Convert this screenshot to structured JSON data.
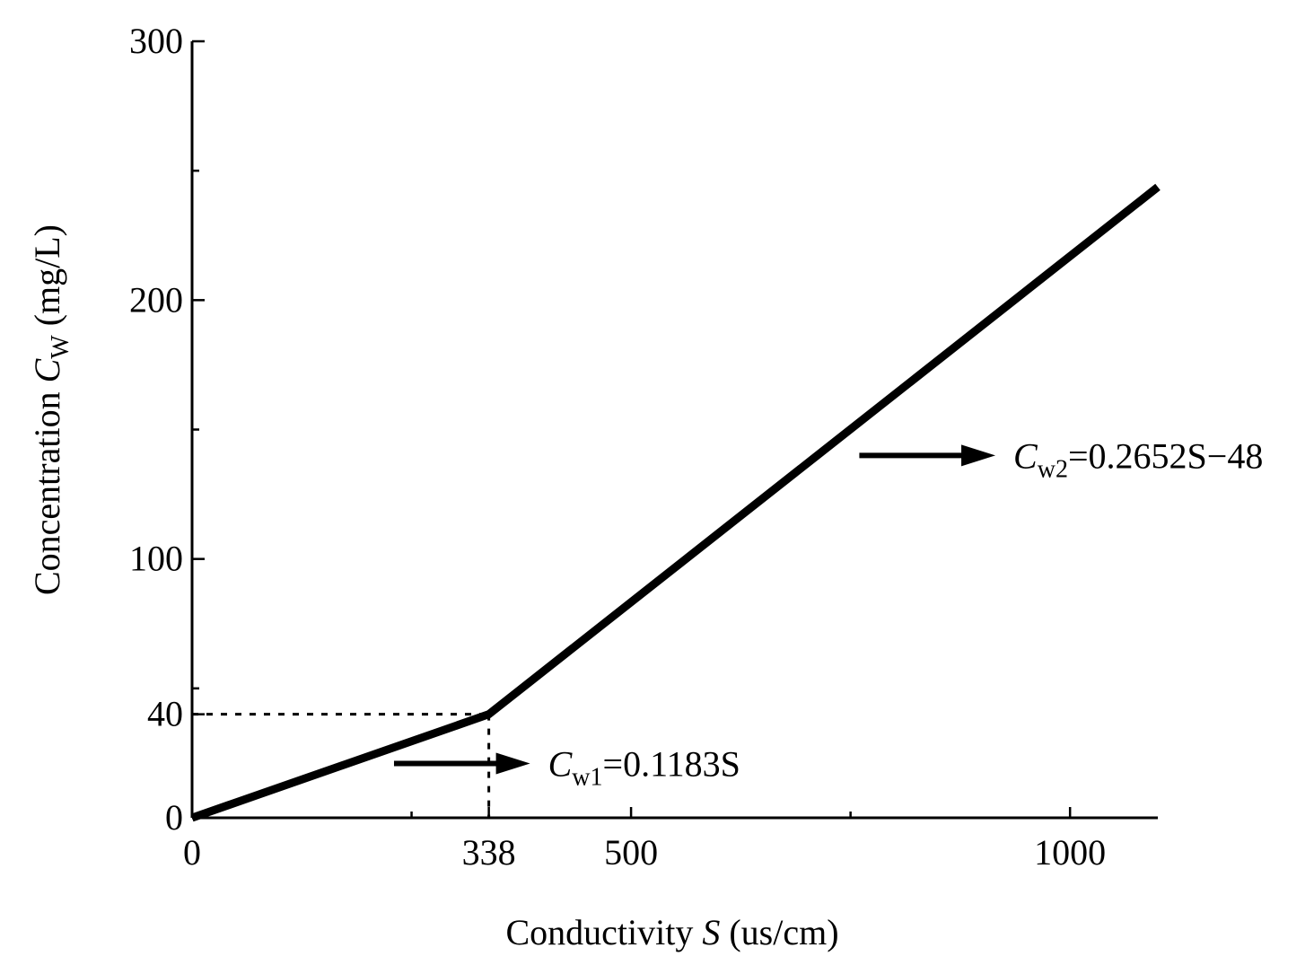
{
  "chart_data": {
    "type": "line",
    "xlabel": {
      "prefix": "Conductivity  ",
      "var": "S",
      "unit": " (us/cm)"
    },
    "ylabel": {
      "prefix": "Concentration ",
      "var": "C",
      "sub": "W",
      "unit": " (mg/L)"
    },
    "xlim": [
      0,
      1100
    ],
    "ylim": [
      0,
      300
    ],
    "x_ticks": [
      0,
      338,
      500,
      1000
    ],
    "x_tick_labels": [
      "0",
      "338",
      "500",
      "1000"
    ],
    "x_minor_ticks": [
      250,
      750
    ],
    "y_ticks": [
      0,
      40,
      100,
      200,
      300
    ],
    "y_tick_labels": [
      "0",
      "40",
      "100",
      "200",
      "300"
    ],
    "y_minor_ticks": [
      50,
      150,
      250
    ],
    "grid": false,
    "series": [
      {
        "x": [
          0,
          338,
          1100
        ],
        "y": [
          0,
          40,
          243.7
        ]
      }
    ],
    "reference_point": {
      "x": 338,
      "y": 40
    },
    "annotations": [
      {
        "var": "C",
        "sub": "w1",
        "text": "=0.1183S",
        "arrow_from": [
          230,
          21
        ],
        "arrow_to": [
          385,
          21
        ]
      },
      {
        "var": "C",
        "sub": "w2",
        "text": "=0.2652S−48",
        "arrow_from": [
          760,
          140
        ],
        "arrow_to": [
          915,
          140
        ]
      }
    ]
  }
}
